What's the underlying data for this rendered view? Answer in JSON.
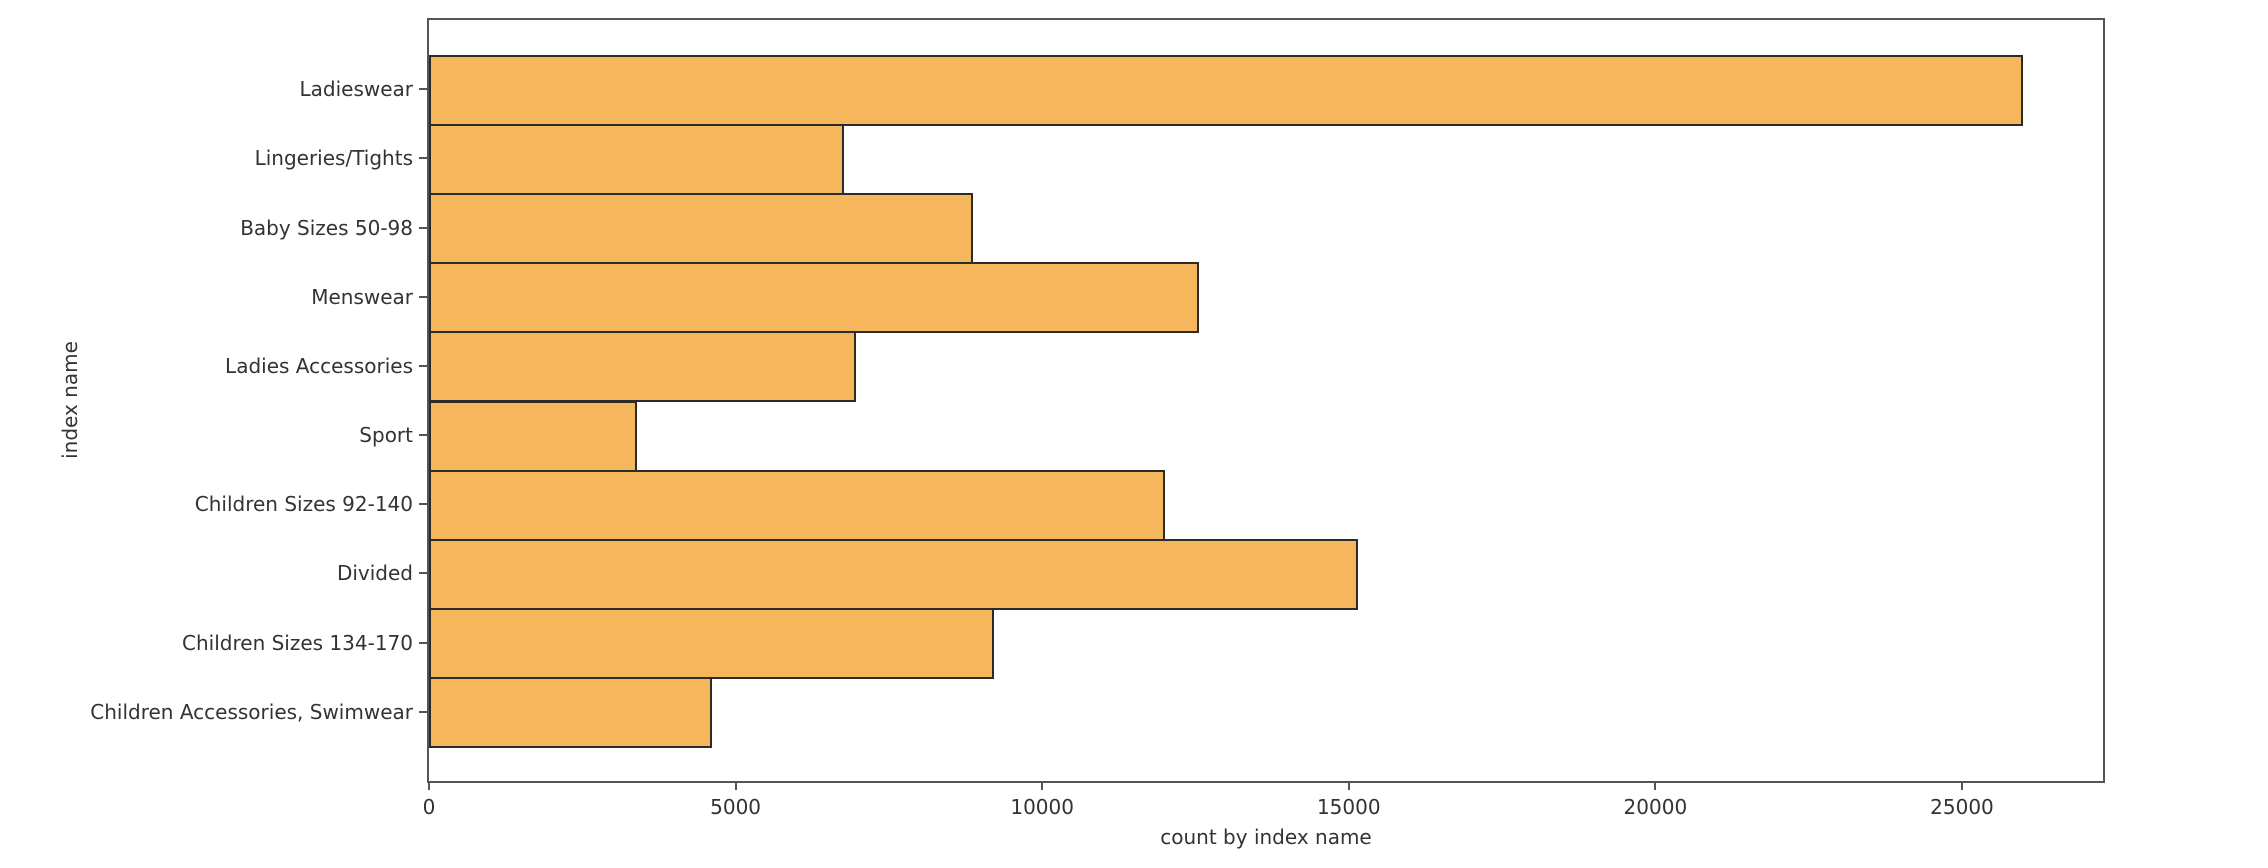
{
  "chart_data": {
    "type": "bar",
    "orientation": "horizontal",
    "title": "",
    "categories": [
      "Ladieswear",
      "Lingeries/Tights",
      "Baby Sizes 50-98",
      "Menswear",
      "Ladies Accessories",
      "Sport",
      "Children Sizes 92-140",
      "Divided",
      "Children Sizes 134-170",
      "Children Accessories, Swimwear"
    ],
    "values": [
      26001,
      6775,
      8875,
      12553,
      6961,
      3392,
      12007,
      15149,
      9214,
      4615
    ],
    "xlabel": "count by index name",
    "ylabel": "index name",
    "xlim": [
      0,
      27300
    ],
    "x_ticks": [
      0,
      5000,
      10000,
      15000,
      20000,
      25000
    ],
    "x_tick_labels": [
      "0",
      "5000",
      "10000",
      "15000",
      "20000",
      "25000"
    ],
    "grid": false,
    "legend": null,
    "colors": {
      "bar_fill": "#f5b65c",
      "bar_edge": "#2b2b2b",
      "spine": "#555555",
      "text": "#333333",
      "background": "#ffffff"
    }
  }
}
